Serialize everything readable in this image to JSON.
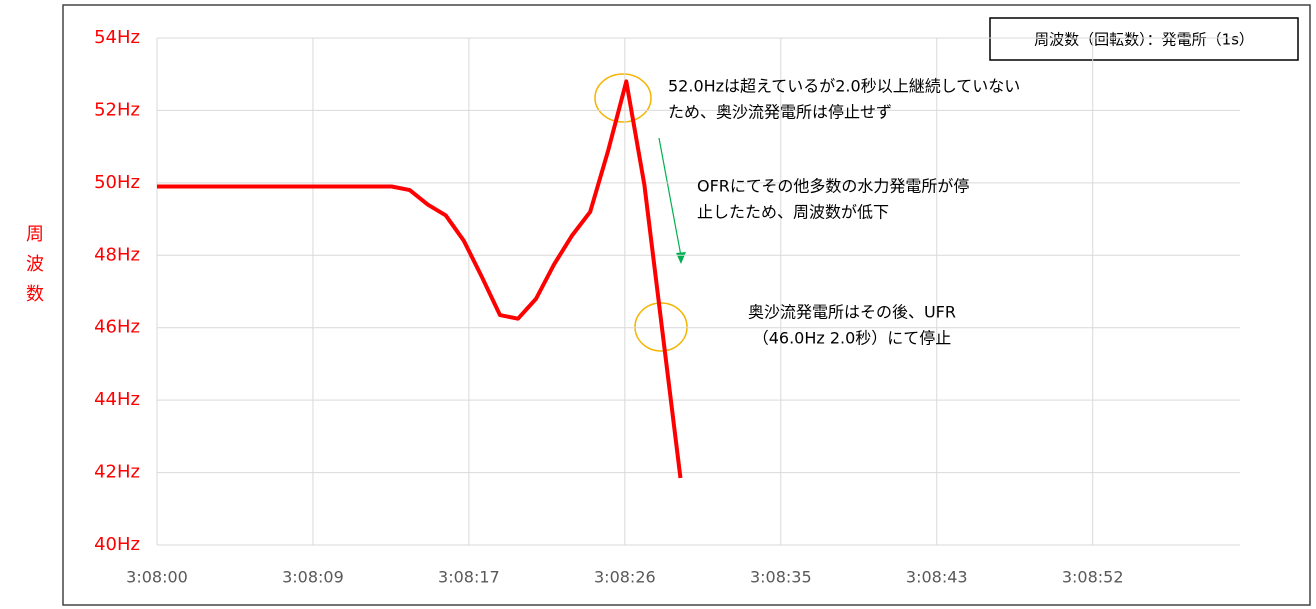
{
  "chart_data": {
    "type": "line",
    "legend_title": "周波数（回転数）：発電所（1s）",
    "y_axis_label": "周波数",
    "x": [
      0,
      1,
      2,
      3,
      4,
      5,
      6,
      7,
      8,
      9,
      10,
      11,
      12,
      13,
      14,
      15,
      16,
      17,
      18,
      19,
      20,
      21,
      22,
      23,
      24,
      25,
      26,
      27,
      28,
      29
    ],
    "series": [
      {
        "name": "周波数",
        "color": "#ff0000",
        "values": [
          49.9,
          49.9,
          49.9,
          49.9,
          49.9,
          49.9,
          49.9,
          49.9,
          49.9,
          49.9,
          49.9,
          49.9,
          49.9,
          49.9,
          49.8,
          49.4,
          49.1,
          48.4,
          47.4,
          46.35,
          46.25,
          46.8,
          47.75,
          48.55,
          49.2,
          50.9,
          52.8,
          49.95,
          45.9,
          41.85
        ]
      }
    ],
    "xlim": [
      0,
      60
    ],
    "xticks": [
      {
        "value": 0,
        "label": "3:08:00"
      },
      {
        "value": 8.64,
        "label": "3:08:09"
      },
      {
        "value": 17.28,
        "label": "3:08:17"
      },
      {
        "value": 25.92,
        "label": "3:08:26"
      },
      {
        "value": 34.56,
        "label": "3:08:35"
      },
      {
        "value": 43.2,
        "label": "3:08:43"
      },
      {
        "value": 51.84,
        "label": "3:08:52"
      }
    ],
    "ylim": [
      40,
      54
    ],
    "yticks": [
      {
        "value": 40,
        "label": "40Hz"
      },
      {
        "value": 42,
        "label": "42Hz"
      },
      {
        "value": 44,
        "label": "44Hz"
      },
      {
        "value": 46,
        "label": "46Hz"
      },
      {
        "value": 48,
        "label": "48Hz"
      },
      {
        "value": 50,
        "label": "50Hz"
      },
      {
        "value": 52,
        "label": "52Hz"
      },
      {
        "value": 54,
        "label": "54Hz"
      }
    ],
    "grid": true,
    "annotations": [
      {
        "lines": [
          "52.0Hzは超えているが2.0秒以上継続していない",
          "ため、奥沙流発電所は停止せず"
        ]
      },
      {
        "lines": [
          "OFRにてその他多数の水力発電所が停",
          "止したため、周波数が低下"
        ]
      },
      {
        "lines": [
          "奥沙流発電所はその後、UFR",
          "（46.0Hz 2.0秒）にて停止"
        ]
      }
    ]
  }
}
